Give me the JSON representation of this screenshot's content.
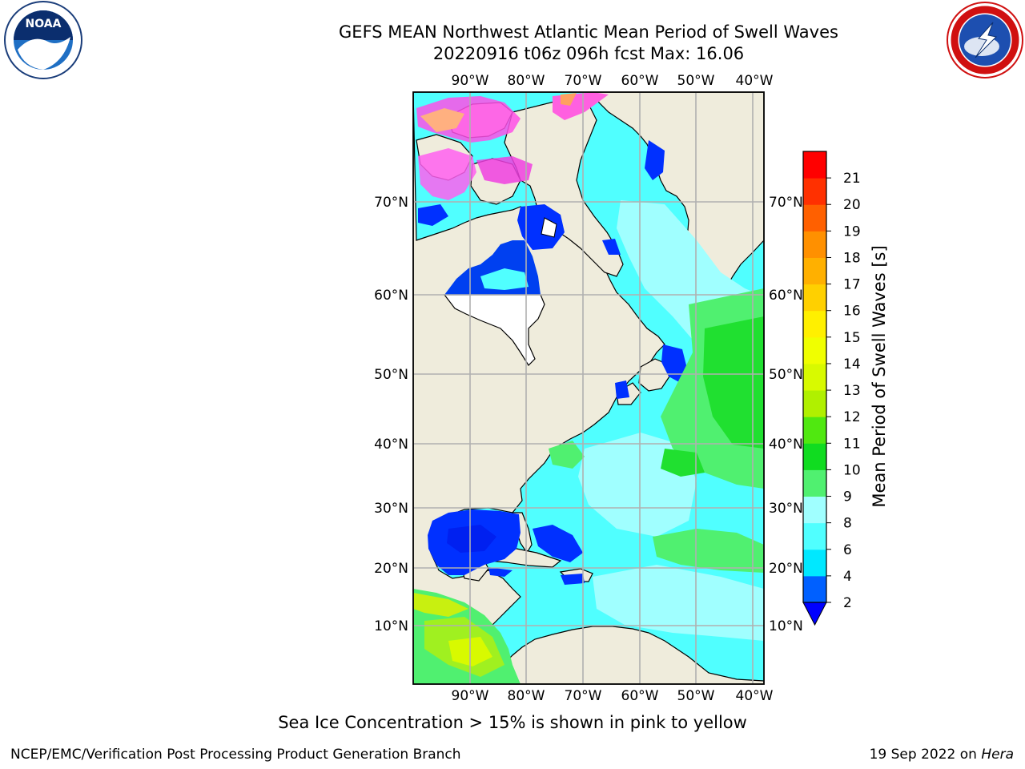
{
  "title": {
    "line1": "GEFS MEAN Northwest Atlantic Mean Period of Swell Waves",
    "line2": "20220916 t06z 096h fcst   Max: 16.06"
  },
  "logos": {
    "noaa": {
      "text": "NOAA",
      "ring_text": "NATIONAL OCEANIC AND ATMOSPHERIC ADMINISTRATION",
      "bottom_text": "U.S. DEPARTMENT OF COMMERCE"
    },
    "nws": {
      "ring_text": "NATIONAL WEATHER SERVICE"
    }
  },
  "map": {
    "longitude_labels": [
      "90°W",
      "80°W",
      "70°W",
      "60°W",
      "50°W",
      "40°W"
    ],
    "latitude_labels": [
      "70°N",
      "60°N",
      "50°N",
      "40°N",
      "30°N",
      "20°N",
      "10°N"
    ],
    "colors": {
      "land": "#efecdc",
      "grid": "#b0b0b0",
      "no_data": "#ffffff"
    }
  },
  "colorbar": {
    "title": "Mean Period of Swell Waves [s]",
    "tick_labels": [
      "2",
      "4",
      "6",
      "8",
      "9",
      "10",
      "11",
      "12",
      "13",
      "14",
      "15",
      "16",
      "17",
      "18",
      "19",
      "20",
      "21"
    ],
    "colors": [
      "#0060ff",
      "#00e8ff",
      "#50ffff",
      "#a0ffff",
      "#50f070",
      "#10dc20",
      "#50e810",
      "#b0f000",
      "#d8fa00",
      "#f0ff00",
      "#fff000",
      "#ffd000",
      "#ffb000",
      "#ff9000",
      "#ff6000",
      "#ff3000",
      "#ff0000"
    ],
    "under_color": "#0000ff"
  },
  "caption": "Sea Ice Concentration > 15% is shown in pink to yellow",
  "footer": {
    "left": "NCEP/EMC/Verification Post Processing Product Generation Branch",
    "right_prefix": "19 Sep 2022 on ",
    "right_italic": "Hera"
  }
}
